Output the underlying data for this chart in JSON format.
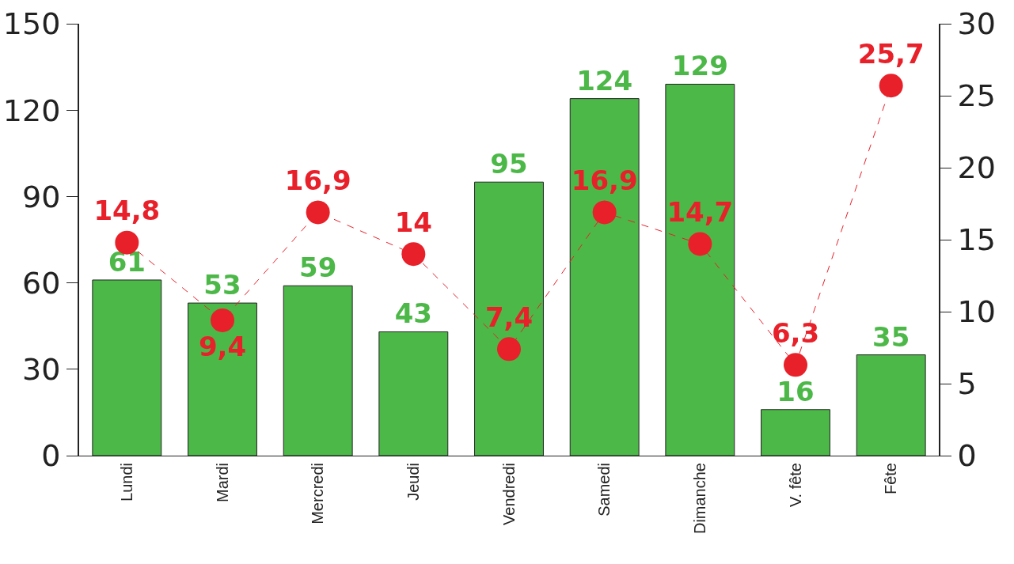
{
  "chart_data": {
    "type": "bar",
    "categories": [
      "Lundi",
      "Mardi",
      "Mercredi",
      "Jeudi",
      "Vendredi",
      "Samedi",
      "Dimanche",
      "V. fête",
      "Fête"
    ],
    "series": [
      {
        "type": "bar",
        "color": "#4cb848",
        "values": [
          61,
          53,
          59,
          43,
          95,
          124,
          129,
          16,
          35
        ],
        "value_labels": [
          "61",
          "53",
          "59",
          "43",
          "95",
          "124",
          "129",
          "16",
          "35"
        ]
      },
      {
        "type": "line",
        "axis": "y2",
        "color": "#e8202a",
        "line_style": "dashed",
        "marker": "circle",
        "values": [
          14.8,
          9.4,
          16.9,
          14,
          7.4,
          16.9,
          14.7,
          6.3,
          25.7
        ],
        "value_labels": [
          "14,8",
          "9,4",
          "16,9",
          "14",
          "7,4",
          "16,9",
          "14,7",
          "6,3",
          "25,7"
        ]
      }
    ],
    "ylim": [
      0,
      150
    ],
    "yticks": [
      0,
      30,
      60,
      90,
      120,
      150
    ],
    "y2lim": [
      0,
      30
    ],
    "y2ticks": [
      0,
      5,
      10,
      15,
      20,
      25,
      30
    ]
  }
}
